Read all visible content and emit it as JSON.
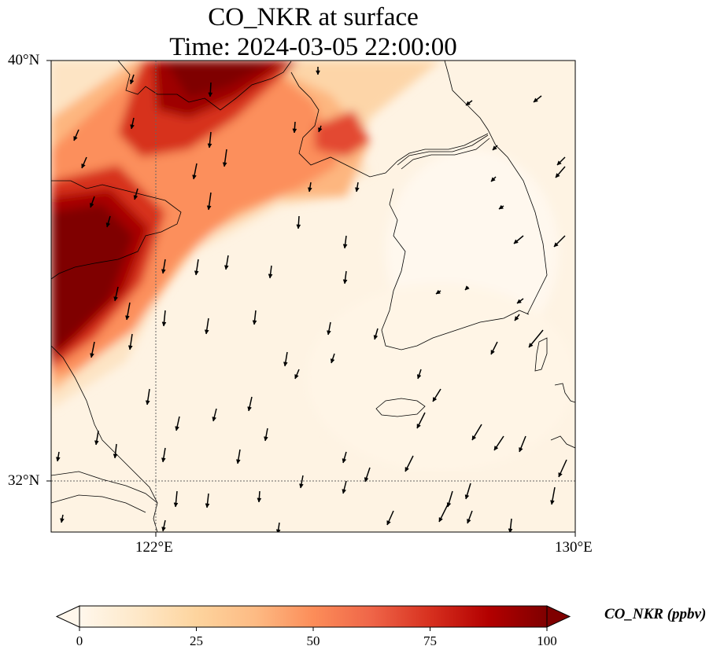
{
  "title": {
    "line1": "CO_NKR at surface",
    "line2": "Time: 2024-03-05 22:00:00"
  },
  "map": {
    "lon_range": [
      120,
      130
    ],
    "lat_range": [
      31,
      40
    ],
    "gridlines": {
      "lon": [
        122
      ],
      "lat": [
        32
      ],
      "style": "dotted"
    },
    "lat_ticks": [
      {
        "value": 40,
        "label": "40°N"
      },
      {
        "value": 32,
        "label": "32°N"
      }
    ],
    "lon_ticks": [
      {
        "value": 122,
        "label": "122°E"
      },
      {
        "value": 130,
        "label": "130°E"
      }
    ],
    "field": "CO_NKR concentration, high (dark red) over the Shandong peninsula and eastern China coast and along a northeast band, low over Korea and the sea",
    "wind_vectors": "predominantly from the north / north-northeast"
  },
  "colorbar": {
    "label": "CO_NKR (ppbv)",
    "ticks": [
      "0",
      "25",
      "50",
      "75",
      "100"
    ],
    "min": 0,
    "max": 100,
    "colormap": "OrRd",
    "extend": "both",
    "stops": [
      "#fff7ec",
      "#fee8c8",
      "#fdd49e",
      "#fdbb84",
      "#fc8d59",
      "#ef6548",
      "#d7301f",
      "#b30000",
      "#7f0000"
    ]
  }
}
